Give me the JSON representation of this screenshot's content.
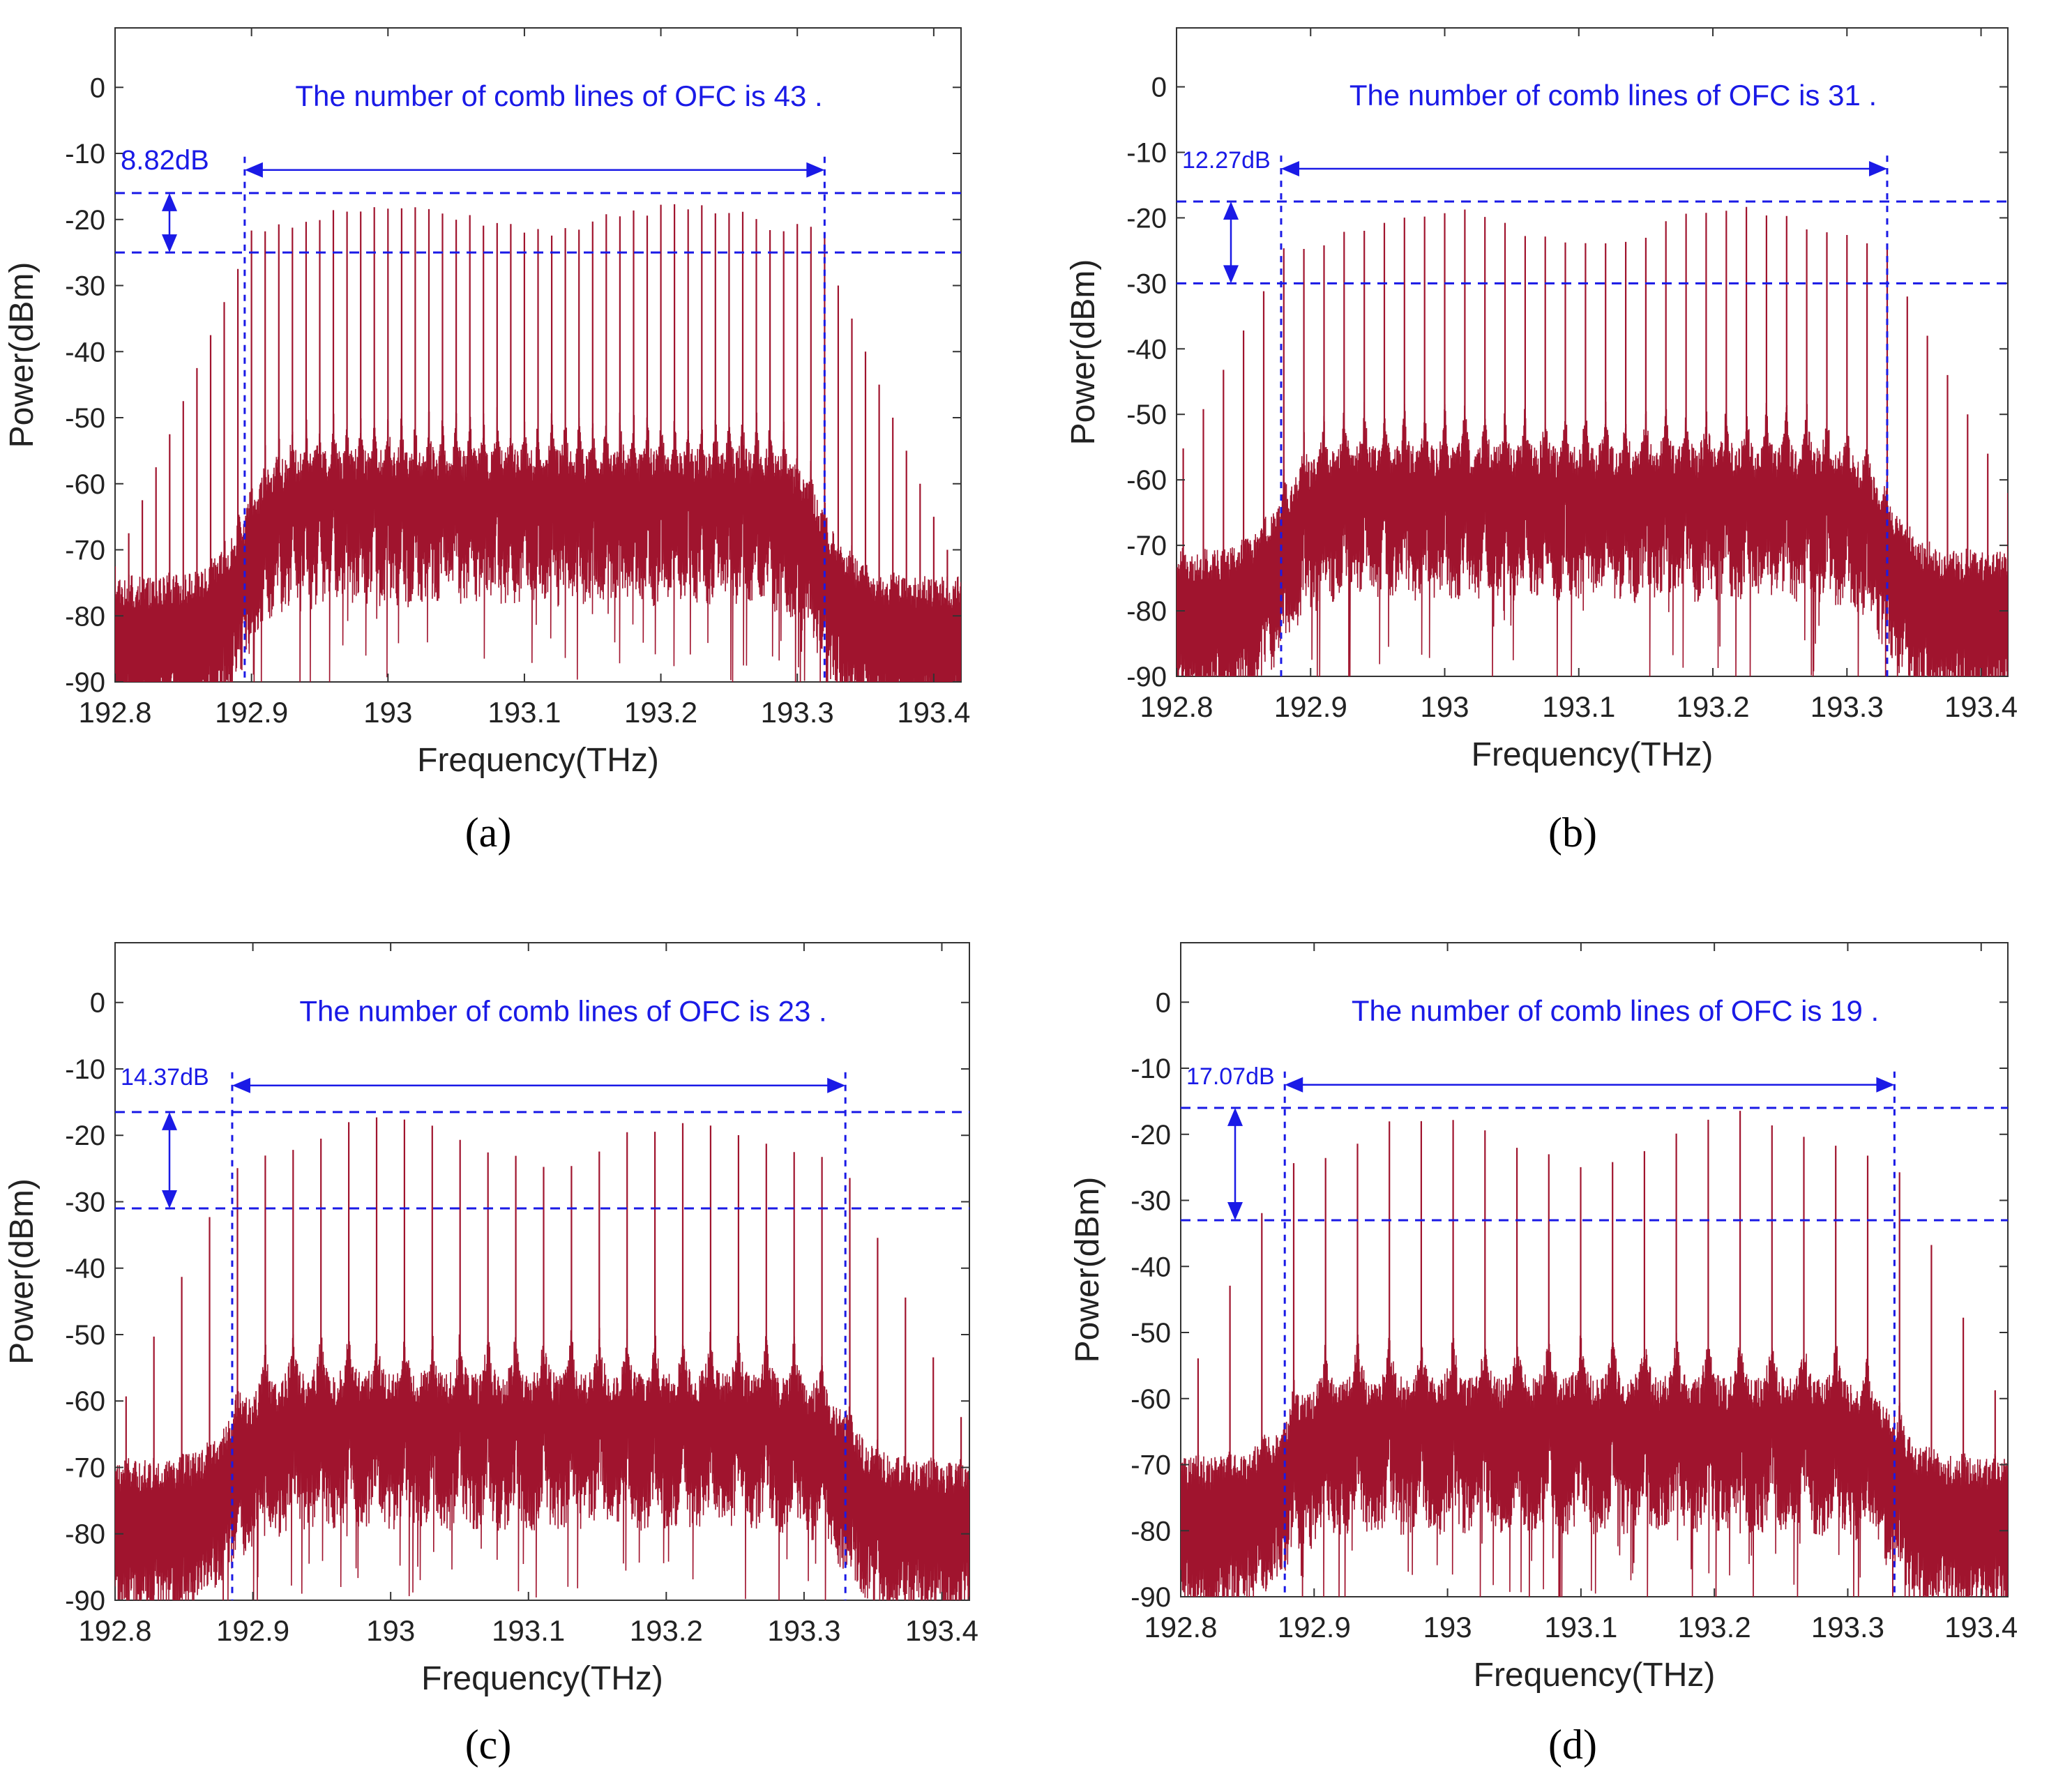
{
  "figure": {
    "captions": [
      "(a)",
      "(b)",
      "(c)",
      "(d)"
    ]
  },
  "style": {
    "trace_color": "#a0142e",
    "annotation_color": "#1a1ae6",
    "axis_color": "#333333"
  },
  "chart_data": [
    {
      "type": "line",
      "panel": "a",
      "title": "",
      "xlabel": "Frequency(THz)",
      "ylabel": "Power(dBm)",
      "xlim": [
        192.8,
        193.42
      ],
      "ylim": [
        -90,
        9
      ],
      "xticks": [
        192.8,
        192.9,
        193,
        193.1,
        193.2,
        193.3,
        193.4
      ],
      "xtick_labels": [
        "192.8",
        "192.9",
        "193",
        "193.1",
        "193.2",
        "193.3",
        "193.4"
      ],
      "yticks": [
        0,
        -10,
        -20,
        -30,
        -40,
        -50,
        -60,
        -70,
        -80,
        -90
      ],
      "ytick_labels": [
        "0",
        "-10",
        "-20",
        "-30",
        "-40",
        "-50",
        "-60",
        "-70",
        "-80",
        "-90"
      ],
      "annotation_text": "The number of comb lines of OFC is 43 .",
      "comb_count": 43,
      "flatness_label": "8.82dB",
      "flatness_db": 8.82,
      "flat_band": [
        192.895,
        193.32
      ],
      "hline_upper": -16,
      "hline_lower": -25,
      "comb_start": 192.8,
      "comb_spacing": 0.01,
      "comb_end": 193.42,
      "band_peak_dbm": -17,
      "edge_drop_db_per_line": 5,
      "noise_floor_in_band": -64,
      "noise_floor_out_band": -83
    },
    {
      "type": "line",
      "panel": "b",
      "title": "",
      "xlabel": "Frequency(THz)",
      "ylabel": "Power(dBm)",
      "xlim": [
        192.8,
        193.42
      ],
      "ylim": [
        -90,
        9
      ],
      "xticks": [
        192.8,
        192.9,
        193,
        193.1,
        193.2,
        193.3,
        193.4
      ],
      "xtick_labels": [
        "192.8",
        "192.9",
        "193",
        "193.1",
        "193.2",
        "193.3",
        "193.4"
      ],
      "yticks": [
        0,
        -10,
        -20,
        -30,
        -40,
        -50,
        -60,
        -70,
        -80,
        -90
      ],
      "ytick_labels": [
        "0",
        "-10",
        "-20",
        "-30",
        "-40",
        "-50",
        "-60",
        "-70",
        "-80",
        "-90"
      ],
      "annotation_text": "The number of comb lines of OFC is 31 .",
      "comb_count": 31,
      "flatness_label": "12.27dB",
      "flatness_db": 12.27,
      "flat_band": [
        192.878,
        193.33
      ],
      "hline_upper": -17.5,
      "hline_lower": -30,
      "comb_start": 192.805,
      "comb_spacing": 0.015,
      "comb_end": 193.42,
      "band_peak_dbm": -18,
      "edge_drop_db_per_line": 6,
      "noise_floor_in_band": -64,
      "noise_floor_out_band": -80
    },
    {
      "type": "line",
      "panel": "c",
      "title": "",
      "xlabel": "Frequency(THz)",
      "ylabel": "Power(dBm)",
      "xlim": [
        192.8,
        193.42
      ],
      "ylim": [
        -90,
        9
      ],
      "xticks": [
        192.8,
        192.9,
        193,
        193.1,
        193.2,
        193.3,
        193.4
      ],
      "xtick_labels": [
        "192.8",
        "192.9",
        "193",
        "193.1",
        "193.2",
        "193.3",
        "193.4"
      ],
      "yticks": [
        0,
        -10,
        -20,
        -30,
        -40,
        -50,
        -60,
        -70,
        -80,
        -90
      ],
      "ytick_labels": [
        "0",
        "-10",
        "-20",
        "-30",
        "-40",
        "-50",
        "-60",
        "-70",
        "-80",
        "-90"
      ],
      "annotation_text": "The number of comb lines of OFC is 23 .",
      "comb_count": 23,
      "flatness_label": "14.37dB",
      "flatness_db": 14.37,
      "flat_band": [
        192.885,
        193.33
      ],
      "hline_upper": -16.5,
      "hline_lower": -31,
      "comb_start": 192.808,
      "comb_spacing": 0.0202,
      "comb_end": 193.42,
      "band_peak_dbm": -17,
      "edge_drop_db_per_line": 9,
      "noise_floor_in_band": -65,
      "noise_floor_out_band": -78
    },
    {
      "type": "line",
      "panel": "d",
      "title": "",
      "xlabel": "Frequency(THz)",
      "ylabel": "Power(dBm)",
      "xlim": [
        192.8,
        193.42
      ],
      "ylim": [
        -90,
        9
      ],
      "xticks": [
        192.8,
        192.9,
        193,
        193.1,
        193.2,
        193.3,
        193.4
      ],
      "xtick_labels": [
        "192.8",
        "192.9",
        "193",
        "193.1",
        "193.2",
        "193.3",
        "193.4"
      ],
      "yticks": [
        0,
        -10,
        -20,
        -30,
        -40,
        -50,
        -60,
        -70,
        -80,
        -90
      ],
      "ytick_labels": [
        "0",
        "-10",
        "-20",
        "-30",
        "-40",
        "-50",
        "-60",
        "-70",
        "-80",
        "-90"
      ],
      "annotation_text": "The number of comb lines of OFC is 19 .",
      "comb_count": 19,
      "flatness_label": "17.07dB",
      "flatness_db": 17.07,
      "flat_band": [
        192.878,
        193.335
      ],
      "hline_upper": -16,
      "hline_lower": -33,
      "comb_start": 192.813,
      "comb_spacing": 0.0239,
      "comb_end": 193.42,
      "band_peak_dbm": -16,
      "edge_drop_db_per_line": 11,
      "noise_floor_in_band": -66,
      "noise_floor_out_band": -78
    }
  ]
}
